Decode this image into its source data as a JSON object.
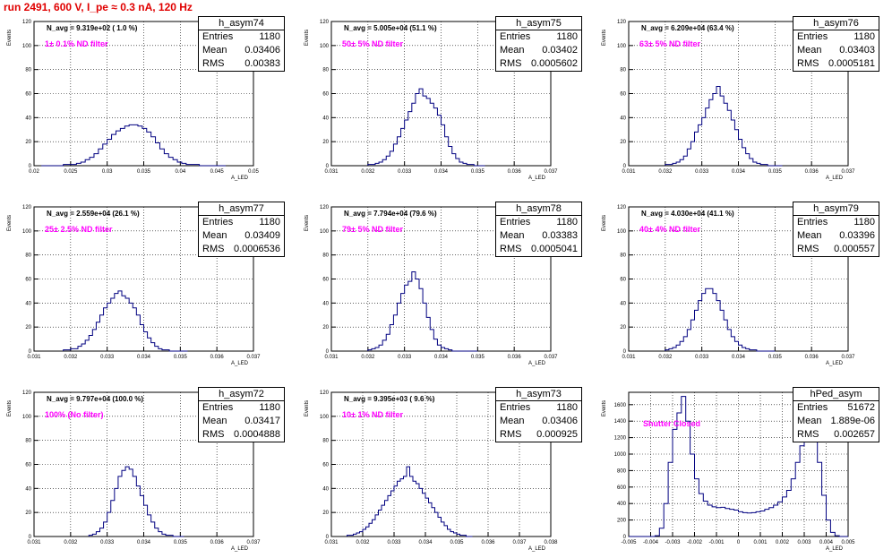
{
  "title": "run 2491,   600 V, I_pe ≈ 0.3 nA, 120 Hz",
  "stat_labels": {
    "entries": "Entries",
    "mean": "Mean",
    "rms": "RMS"
  },
  "colors": {
    "histogram": "#000080",
    "title": "#e00000",
    "annotation": "#ff00ff"
  },
  "chart_data": [
    {
      "type": "histogram",
      "name": "h_asym74",
      "n_avg": "N_avg = 9.319e+02 ( 1.0 %)",
      "filter": "1± 0.1% ND filter",
      "entries": "1180",
      "mean": "0.03406",
      "rms": "0.00383",
      "ylabel": "Events",
      "xlabel": "A_LED",
      "xlim": [
        0.02,
        0.05
      ],
      "ylim": [
        0,
        120
      ],
      "xticks": [
        "0.02",
        "0.025",
        "0.03",
        "0.035",
        "0.04",
        "0.045",
        "0.05"
      ],
      "yticks": [
        "0",
        "20",
        "40",
        "60",
        "80",
        "100",
        "120"
      ],
      "bins": {
        "start": 0.021,
        "width": 0.0006,
        "counts": [
          0,
          0,
          0,
          0,
          0,
          1,
          1,
          1,
          2,
          3,
          5,
          7,
          10,
          14,
          18,
          22,
          26,
          29,
          31,
          33,
          34,
          34,
          33,
          31,
          28,
          24,
          19,
          14,
          10,
          7,
          5,
          3,
          2,
          1,
          1,
          1,
          0,
          0,
          0,
          0,
          0,
          0
        ]
      }
    },
    {
      "type": "histogram",
      "name": "h_asym75",
      "n_avg": "N_avg = 5.005e+04 (51.1 %)",
      "filter": "50± 5% ND filter",
      "entries": "1180",
      "mean": "0.03402",
      "rms": "0.0005602",
      "ylabel": "Events",
      "xlabel": "A_LED",
      "xlim": [
        0.031,
        0.037
      ],
      "ylim": [
        0,
        120
      ],
      "xticks": [
        "0.031",
        "0.032",
        "0.033",
        "0.034",
        "0.035",
        "0.036",
        "0.037"
      ],
      "yticks": [
        "0",
        "20",
        "40",
        "60",
        "80",
        "100",
        "120"
      ],
      "bins": {
        "start": 0.032,
        "width": 0.0001,
        "counts": [
          1,
          1,
          2,
          3,
          5,
          8,
          12,
          18,
          24,
          31,
          38,
          45,
          52,
          60,
          64,
          58,
          56,
          52,
          48,
          42,
          34,
          24,
          16,
          10,
          6,
          3,
          2,
          1,
          1,
          0,
          0,
          0
        ]
      }
    },
    {
      "type": "histogram",
      "name": "h_asym76",
      "n_avg": "N_avg = 6.209e+04 (63.4 %)",
      "filter": "63± 5% ND filter",
      "entries": "1180",
      "mean": "0.03403",
      "rms": "0.0005181",
      "ylabel": "Events",
      "xlabel": "A_LED",
      "xlim": [
        0.031,
        0.037
      ],
      "ylim": [
        0,
        120
      ],
      "xticks": [
        "0.031",
        "0.032",
        "0.033",
        "0.034",
        "0.035",
        "0.036",
        "0.037"
      ],
      "yticks": [
        "0",
        "20",
        "40",
        "60",
        "80",
        "100",
        "120"
      ],
      "bins": {
        "start": 0.032,
        "width": 0.0001,
        "counts": [
          1,
          1,
          2,
          3,
          5,
          8,
          14,
          20,
          28,
          34,
          40,
          48,
          55,
          60,
          66,
          58,
          52,
          46,
          38,
          30,
          22,
          15,
          10,
          6,
          3,
          2,
          1,
          1,
          0,
          0,
          0,
          0
        ]
      }
    },
    {
      "type": "histogram",
      "name": "h_asym77",
      "n_avg": "N_avg = 2.559e+04 (26.1 %)",
      "filter": "25± 2.5% ND filter",
      "entries": "1180",
      "mean": "0.03409",
      "rms": "0.0006536",
      "ylabel": "Events",
      "xlabel": "A_LED",
      "xlim": [
        0.031,
        0.037
      ],
      "ylim": [
        0,
        120
      ],
      "xticks": [
        "0.031",
        "0.032",
        "0.033",
        "0.034",
        "0.035",
        "0.036",
        "0.037"
      ],
      "yticks": [
        "0",
        "20",
        "40",
        "60",
        "80",
        "100",
        "120"
      ],
      "bins": {
        "start": 0.0318,
        "width": 0.0001,
        "counts": [
          1,
          1,
          2,
          2,
          4,
          6,
          9,
          13,
          18,
          24,
          30,
          36,
          40,
          44,
          48,
          50,
          46,
          44,
          40,
          36,
          30,
          22,
          16,
          11,
          7,
          4,
          2,
          1,
          1,
          0,
          0,
          0,
          0,
          0
        ]
      }
    },
    {
      "type": "histogram",
      "name": "h_asym78",
      "n_avg": "N_avg = 7.794e+04 (79.6 %)",
      "filter": "79± 5% ND filter",
      "entries": "1180",
      "mean": "0.03383",
      "rms": "0.0005041",
      "ylabel": "Events",
      "xlabel": "A_LED",
      "xlim": [
        0.031,
        0.037
      ],
      "ylim": [
        0,
        120
      ],
      "xticks": [
        "0.031",
        "0.032",
        "0.033",
        "0.034",
        "0.035",
        "0.036",
        "0.037"
      ],
      "yticks": [
        "0",
        "20",
        "40",
        "60",
        "80",
        "100",
        "120"
      ],
      "bins": {
        "start": 0.032,
        "width": 0.0001,
        "counts": [
          1,
          2,
          3,
          5,
          9,
          14,
          22,
          30,
          40,
          48,
          55,
          58,
          66,
          60,
          52,
          40,
          28,
          18,
          10,
          5,
          3,
          2,
          1,
          0,
          0,
          0,
          0,
          0,
          0,
          0
        ]
      }
    },
    {
      "type": "histogram",
      "name": "h_asym79",
      "n_avg": "N_avg = 4.030e+04 (41.1 %)",
      "filter": "40± 4% ND filter",
      "entries": "1180",
      "mean": "0.03396",
      "rms": "0.000557",
      "ylabel": "Events",
      "xlabel": "A_LED",
      "xlim": [
        0.031,
        0.037
      ],
      "ylim": [
        0,
        120
      ],
      "xticks": [
        "0.031",
        "0.032",
        "0.033",
        "0.034",
        "0.035",
        "0.036",
        "0.037"
      ],
      "yticks": [
        "0",
        "20",
        "40",
        "60",
        "80",
        "100",
        "120"
      ],
      "bins": {
        "start": 0.032,
        "width": 0.0001,
        "counts": [
          1,
          2,
          3,
          5,
          8,
          12,
          18,
          26,
          34,
          42,
          48,
          52,
          52,
          48,
          42,
          34,
          26,
          18,
          12,
          8,
          5,
          3,
          2,
          1,
          1,
          0,
          0,
          0,
          0,
          0
        ]
      }
    },
    {
      "type": "histogram",
      "name": "h_asym72",
      "n_avg": "N_avg = 9.797e+04 (100.0 %)",
      "filter": "100% (No filter)",
      "entries": "1180",
      "mean": "0.03417",
      "rms": "0.0004888",
      "ylabel": "Events",
      "xlabel": "A_LED",
      "xlim": [
        0.031,
        0.037
      ],
      "ylim": [
        0,
        120
      ],
      "xticks": [
        "0.031",
        "0.032",
        "0.033",
        "0.034",
        "0.035",
        "0.036",
        "0.037"
      ],
      "yticks": [
        "0",
        "20",
        "40",
        "60",
        "80",
        "100",
        "120"
      ],
      "bins": {
        "start": 0.0325,
        "width": 0.0001,
        "counts": [
          1,
          2,
          4,
          7,
          12,
          20,
          30,
          40,
          50,
          55,
          58,
          56,
          50,
          42,
          34,
          26,
          18,
          12,
          7,
          4,
          2,
          1,
          1,
          0,
          0,
          0
        ]
      }
    },
    {
      "type": "histogram",
      "name": "h_asym73",
      "n_avg": "N_avg = 9.395e+03 ( 9.6 %)",
      "filter": "10± 1% ND filter",
      "entries": "1180",
      "mean": "0.03406",
      "rms": "0.000925",
      "ylabel": "Events",
      "xlabel": "A_LED",
      "xlim": [
        0.031,
        0.038
      ],
      "ylim": [
        0,
        120
      ],
      "xticks": [
        "0.031",
        "0.032",
        "0.033",
        "0.034",
        "0.035",
        "0.036",
        "0.037",
        "0.038"
      ],
      "yticks": [
        "0",
        "20",
        "40",
        "60",
        "80",
        "100",
        "120"
      ],
      "bins": {
        "start": 0.0315,
        "width": 0.0001,
        "counts": [
          1,
          1,
          2,
          3,
          4,
          6,
          8,
          11,
          14,
          18,
          22,
          26,
          30,
          34,
          38,
          42,
          46,
          48,
          50,
          58,
          50,
          46,
          44,
          40,
          36,
          32,
          28,
          24,
          20,
          16,
          12,
          9,
          6,
          4,
          3,
          2,
          1,
          1,
          0,
          0
        ]
      }
    },
    {
      "type": "histogram",
      "name": "hPed_asym",
      "n_avg": "",
      "filter": "Shutter Closed",
      "entries": "51672",
      "mean": "1.889e-06",
      "rms": "0.002657",
      "ylabel": "Events",
      "xlabel": "A_LED",
      "xlim": [
        -0.005,
        0.005
      ],
      "ylim": [
        0,
        1750
      ],
      "xticks": [
        "-0.005",
        "-0.004",
        "-0.003",
        "-0.002",
        "-0.001",
        "0",
        "0.001",
        "0.002",
        "0.003",
        "0.004",
        "0.005"
      ],
      "yticks": [
        "0",
        "200",
        "400",
        "600",
        "800",
        "1000",
        "1200",
        "1400",
        "1600"
      ],
      "bins": {
        "start": -0.005,
        "width": 0.0002,
        "counts": [
          0,
          0,
          0,
          0,
          0,
          0,
          10,
          100,
          400,
          900,
          1300,
          1500,
          1700,
          1400,
          1000,
          700,
          520,
          430,
          380,
          360,
          350,
          355,
          340,
          330,
          320,
          300,
          290,
          285,
          290,
          300,
          310,
          330,
          350,
          380,
          420,
          480,
          560,
          700,
          900,
          1100,
          1300,
          1400,
          1200,
          900,
          500,
          200,
          50,
          10,
          0,
          0
        ]
      }
    }
  ]
}
